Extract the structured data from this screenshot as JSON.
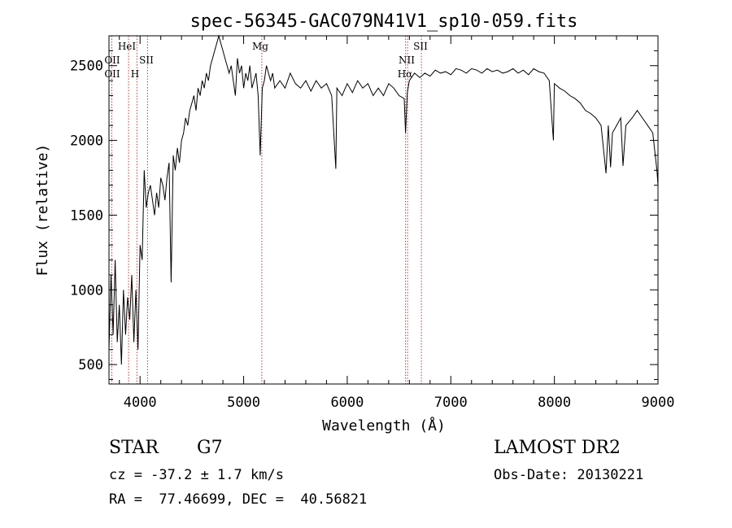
{
  "chart_data": {
    "type": "line",
    "title": "spec-56345-GAC079N41V1_sp10-059.fits",
    "xlabel": "Wavelength (Å)",
    "ylabel": "Flux (relative)",
    "xlim": [
      3700,
      9000
    ],
    "ylim": [
      370,
      2700
    ],
    "xticks": [
      4000,
      5000,
      6000,
      7000,
      8000,
      9000
    ],
    "yticks": [
      500,
      1000,
      1500,
      2000,
      2500
    ],
    "grid": false,
    "line_color": "#000000",
    "marker_color": "#c0392b",
    "x": [
      3700,
      3720,
      3740,
      3760,
      3780,
      3800,
      3820,
      3840,
      3860,
      3880,
      3900,
      3920,
      3940,
      3960,
      3980,
      4000,
      4020,
      4040,
      4060,
      4080,
      4100,
      4120,
      4140,
      4160,
      4180,
      4200,
      4220,
      4240,
      4260,
      4280,
      4300,
      4320,
      4340,
      4360,
      4380,
      4400,
      4420,
      4440,
      4460,
      4480,
      4500,
      4520,
      4540,
      4560,
      4580,
      4600,
      4620,
      4640,
      4660,
      4680,
      4700,
      4720,
      4740,
      4760,
      4780,
      4800,
      4820,
      4840,
      4860,
      4880,
      4900,
      4920,
      4940,
      4960,
      4980,
      5000,
      5020,
      5040,
      5060,
      5080,
      5100,
      5120,
      5140,
      5160,
      5180,
      5200,
      5220,
      5240,
      5260,
      5280,
      5300,
      5350,
      5400,
      5450,
      5500,
      5550,
      5600,
      5650,
      5700,
      5750,
      5800,
      5850,
      5890,
      5900,
      5950,
      6000,
      6050,
      6100,
      6150,
      6200,
      6250,
      6300,
      6350,
      6400,
      6450,
      6500,
      6550,
      6563,
      6580,
      6600,
      6650,
      6700,
      6750,
      6800,
      6850,
      6900,
      6950,
      7000,
      7050,
      7100,
      7150,
      7200,
      7250,
      7300,
      7350,
      7400,
      7450,
      7500,
      7550,
      7600,
      7650,
      7700,
      7750,
      7800,
      7850,
      7900,
      7950,
      7990,
      8000,
      8050,
      8100,
      8150,
      8200,
      8250,
      8300,
      8350,
      8400,
      8450,
      8498,
      8520,
      8542,
      8560,
      8600,
      8640,
      8662,
      8690,
      8750,
      8800,
      8850,
      8900,
      8950,
      8990,
      9000
    ],
    "y": [
      600,
      1100,
      700,
      1200,
      650,
      900,
      500,
      1000,
      700,
      950,
      800,
      1100,
      650,
      1000,
      600,
      1300,
      1200,
      1800,
      1550,
      1650,
      1700,
      1600,
      1500,
      1650,
      1550,
      1750,
      1700,
      1600,
      1750,
      1850,
      1050,
      1900,
      1800,
      1950,
      1850,
      2000,
      2050,
      2150,
      2100,
      2200,
      2250,
      2300,
      2200,
      2350,
      2300,
      2400,
      2350,
      2450,
      2400,
      2500,
      2550,
      2600,
      2650,
      2700,
      2650,
      2600,
      2550,
      2500,
      2450,
      2500,
      2400,
      2300,
      2550,
      2450,
      2500,
      2350,
      2450,
      2400,
      2500,
      2350,
      2400,
      2450,
      2300,
      1900,
      2350,
      2400,
      2500,
      2450,
      2400,
      2450,
      2350,
      2400,
      2350,
      2450,
      2380,
      2350,
      2400,
      2330,
      2400,
      2350,
      2380,
      2300,
      1810,
      2350,
      2300,
      2380,
      2320,
      2400,
      2350,
      2380,
      2300,
      2350,
      2300,
      2380,
      2350,
      2300,
      2280,
      2050,
      2320,
      2400,
      2450,
      2420,
      2450,
      2430,
      2470,
      2450,
      2460,
      2440,
      2480,
      2470,
      2450,
      2480,
      2470,
      2450,
      2480,
      2460,
      2470,
      2450,
      2460,
      2480,
      2450,
      2470,
      2440,
      2480,
      2460,
      2450,
      2400,
      2000,
      2380,
      2350,
      2330,
      2300,
      2280,
      2250,
      2200,
      2180,
      2150,
      2100,
      1780,
      2100,
      1820,
      2050,
      2100,
      2150,
      1830,
      2100,
      2150,
      2200,
      2150,
      2100,
      2050,
      1800,
      1700
    ],
    "lines": [
      {
        "label": "OII",
        "x": 3727
      },
      {
        "label": "HeI",
        "x": 3889
      },
      {
        "label": "H",
        "x": 3970
      },
      {
        "label": "SII",
        "x": 4072
      },
      {
        "label": "Mg",
        "x": 5175
      },
      {
        "label": "NII",
        "x": 6583
      },
      {
        "label": "Hα",
        "x": 6563
      },
      {
        "label": "SII",
        "x": 6716
      }
    ]
  },
  "info": {
    "object_class": "STAR",
    "subclass": "G7",
    "survey": "LAMOST DR2",
    "cz": "cz = -37.2 ± 1.7 km/s",
    "obs_date": "Obs-Date: 20130221",
    "coords": "RA =  77.46699, DEC =  40.56821"
  }
}
